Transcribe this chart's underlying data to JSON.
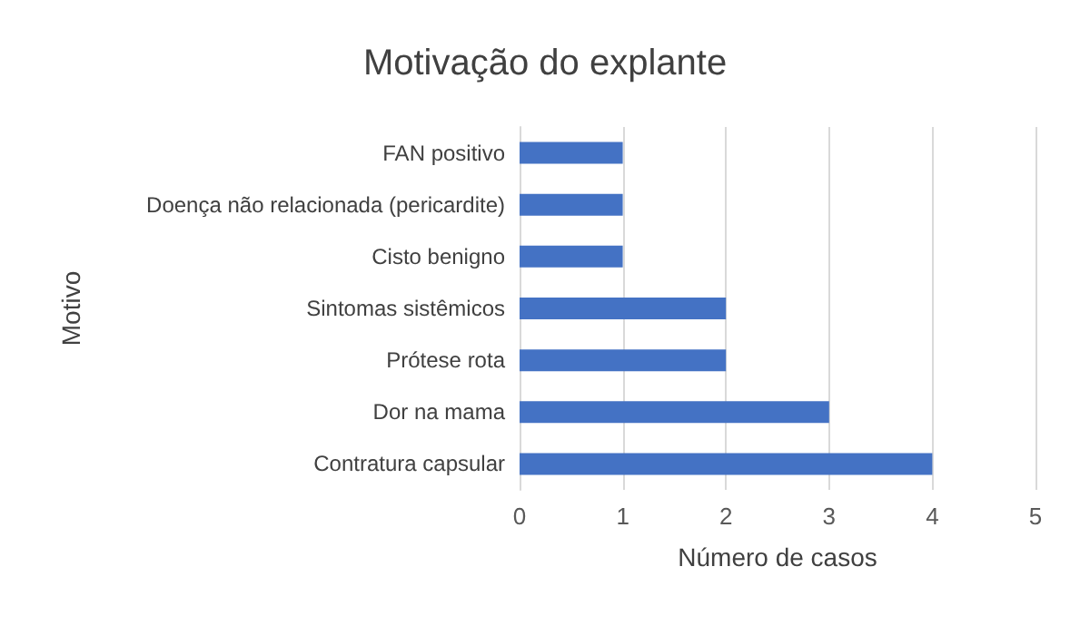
{
  "chart_data": {
    "type": "bar",
    "orientation": "horizontal",
    "title": "Motivação do explante",
    "xlabel": "Número de casos",
    "ylabel": "Motivo",
    "categories": [
      "FAN positivo",
      "Doença não relacionada (pericardite)",
      "Cisto benigno",
      "Sintomas sistêmicos",
      "Prótese rota",
      "Dor na mama",
      "Contratura capsular"
    ],
    "values": [
      1,
      1,
      1,
      2,
      2,
      3,
      4
    ],
    "color": "#4472c4",
    "xlim": [
      0,
      5
    ],
    "xticks": [
      0,
      1,
      2,
      3,
      4,
      5
    ],
    "grid": "x"
  }
}
